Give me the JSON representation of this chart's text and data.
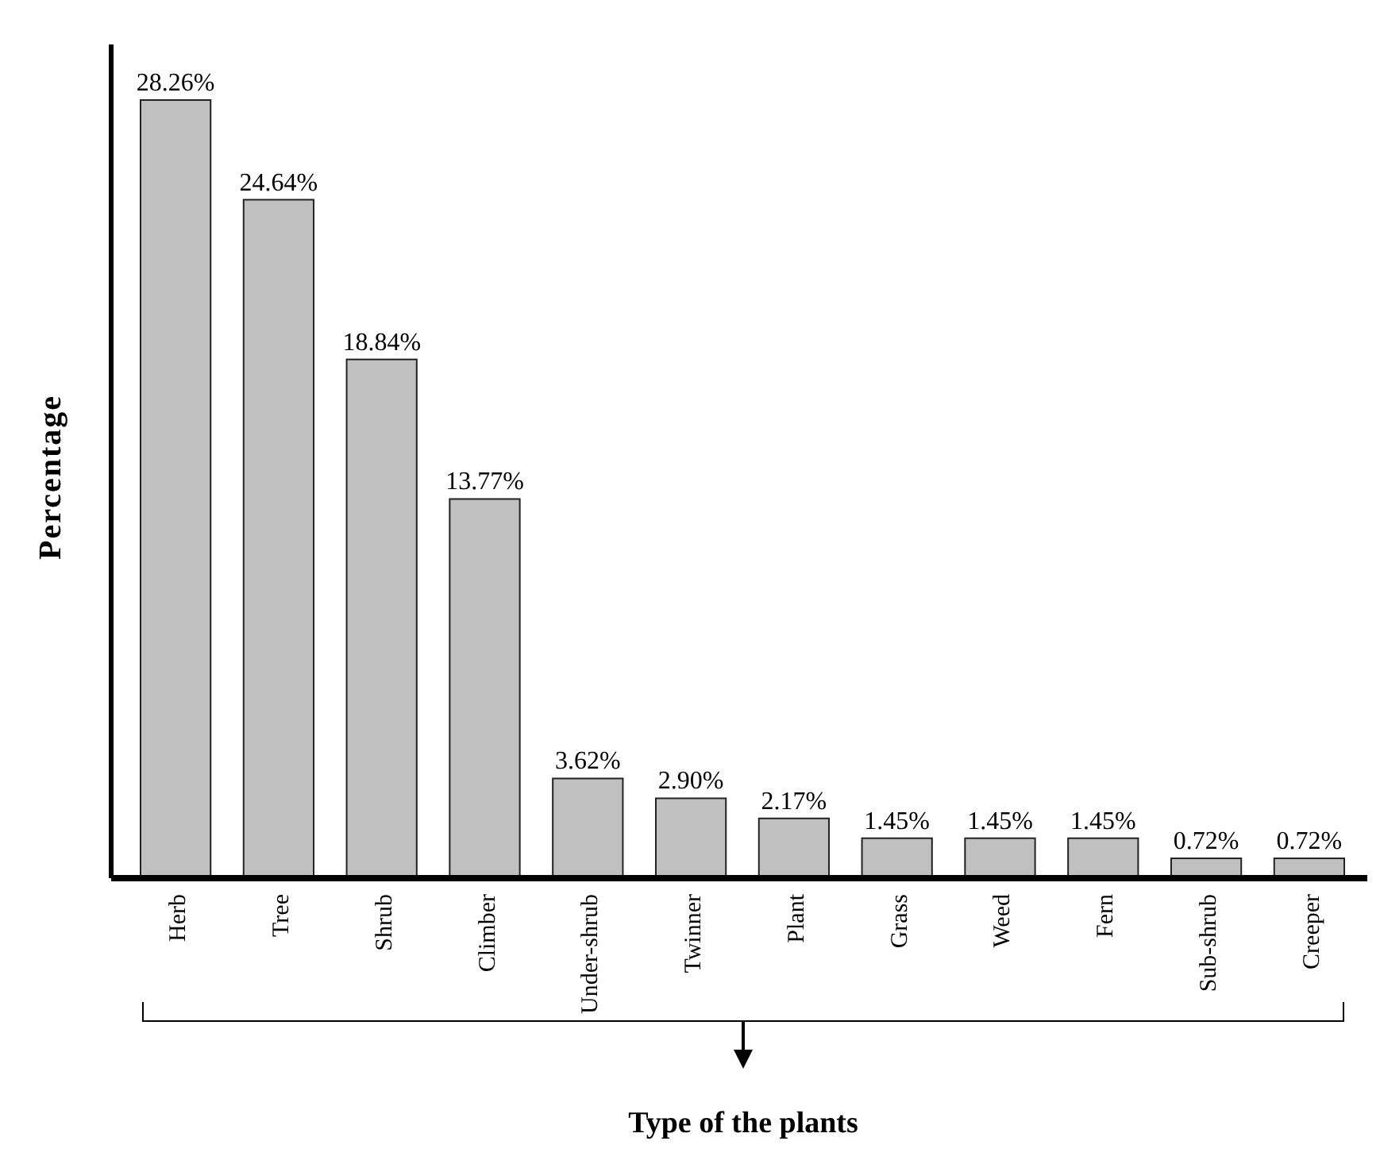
{
  "chart_data": {
    "type": "bar",
    "xlabel": "Type of the plants",
    "ylabel": "Percentage",
    "categories": [
      "Herb",
      "Tree",
      "Shrub",
      "Climber",
      "Under-shrub",
      "Twinner",
      "Plant",
      "Grass",
      "Weed",
      "Fern",
      "Sub-shrub",
      "Creeper"
    ],
    "values": [
      28.26,
      24.64,
      18.84,
      13.77,
      3.62,
      2.9,
      2.17,
      1.45,
      1.45,
      1.45,
      0.72,
      0.72
    ],
    "value_labels": [
      "28.26%",
      "24.64%",
      "18.84%",
      "13.77%",
      "3.62%",
      "2.90%",
      "2.17%",
      "1.45%",
      "1.45%",
      "1.45%",
      "0.72%",
      "0.72%"
    ],
    "color": "#c0c0c0",
    "tick_labels": "x"
  }
}
